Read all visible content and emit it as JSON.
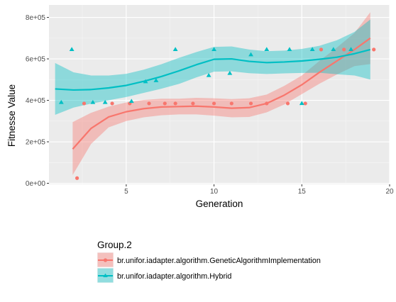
{
  "chart_data": {
    "type": "scatter",
    "title": "",
    "xlabel": "Generation",
    "ylabel": "Fitnesse Value",
    "xlim": [
      0.6,
      20.0
    ],
    "ylim": [
      -5000,
      860000
    ],
    "x_ticks": [
      5,
      10,
      15,
      20
    ],
    "x_tick_labels": [
      "5",
      "10",
      "15",
      "20"
    ],
    "y_ticks": [
      0,
      200000,
      400000,
      600000,
      800000
    ],
    "y_tick_labels": [
      "0e+00",
      "2e+05",
      "4e+05",
      "6e+05",
      "8e+05"
    ],
    "grid": true,
    "legend": {
      "title": "Group.2",
      "placement": "bottom"
    },
    "series": [
      {
        "name": "br.unifor.iadapter.algorithm.GeneticAlgorithmImplementation",
        "color": "#F8766D",
        "marker": "circle",
        "points": [
          [
            2.2,
            25000
          ],
          [
            2.6,
            385000
          ],
          [
            4.2,
            385000
          ],
          [
            5.2,
            385000
          ],
          [
            6.3,
            385000
          ],
          [
            7.2,
            385000
          ],
          [
            7.8,
            385000
          ],
          [
            8.8,
            385000
          ],
          [
            10.0,
            385000
          ],
          [
            11.0,
            385000
          ],
          [
            12.1,
            385000
          ],
          [
            13.0,
            385000
          ],
          [
            14.2,
            385000
          ],
          [
            15.2,
            385000
          ],
          [
            16.1,
            645000
          ],
          [
            17.4,
            645000
          ],
          [
            19.1,
            645000
          ]
        ],
        "smooth": {
          "x": [
            1.95,
            3,
            4,
            5,
            6,
            7,
            8,
            9,
            10,
            11,
            12,
            13,
            14,
            15,
            16,
            17,
            18,
            18.9
          ],
          "fit": [
            165000,
            265000,
            320000,
            345000,
            360000,
            368000,
            370000,
            372000,
            368000,
            362000,
            365000,
            385000,
            425000,
            475000,
            535000,
            590000,
            645000,
            700000
          ],
          "lower": [
            40000,
            190000,
            270000,
            300000,
            318000,
            328000,
            332000,
            332000,
            326000,
            318000,
            320000,
            342000,
            380000,
            430000,
            480000,
            525000,
            565000,
            575000
          ],
          "upper": [
            295000,
            340000,
            370000,
            390000,
            402000,
            408000,
            408000,
            412000,
            410000,
            406000,
            410000,
            428000,
            470000,
            520000,
            590000,
            655000,
            725000,
            825000
          ]
        }
      },
      {
        "name": "br.unifor.iadapter.algorithm.Hybrid",
        "color": "#00BFC4",
        "marker": "triangle",
        "points": [
          [
            1.3,
            390000
          ],
          [
            1.9,
            645000
          ],
          [
            3.1,
            390000
          ],
          [
            3.8,
            390000
          ],
          [
            5.3,
            395000
          ],
          [
            6.1,
            490000
          ],
          [
            6.7,
            495000
          ],
          [
            7.8,
            645000
          ],
          [
            9.7,
            520000
          ],
          [
            10.0,
            645000
          ],
          [
            10.9,
            530000
          ],
          [
            12.1,
            620000
          ],
          [
            13.0,
            645000
          ],
          [
            14.3,
            645000
          ],
          [
            15.0,
            385000
          ],
          [
            15.6,
            645000
          ],
          [
            16.8,
            645000
          ],
          [
            17.8,
            645000
          ]
        ],
        "smooth": {
          "x": [
            0.95,
            2,
            3,
            4,
            5,
            6,
            7,
            8,
            9,
            10,
            11,
            12,
            13,
            14,
            15,
            16,
            17,
            18,
            18.9
          ],
          "fit": [
            455000,
            450000,
            452000,
            460000,
            472000,
            492000,
            515000,
            542000,
            572000,
            598000,
            600000,
            588000,
            582000,
            585000,
            590000,
            598000,
            608000,
            625000,
            645000
          ],
          "upper": [
            580000,
            535000,
            520000,
            520000,
            528000,
            548000,
            574000,
            605000,
            633000,
            658000,
            660000,
            645000,
            637000,
            640000,
            648000,
            663000,
            690000,
            730000,
            790000
          ],
          "lower": [
            330000,
            365000,
            384000,
            400000,
            416000,
            436000,
            456000,
            479000,
            511000,
            538000,
            540000,
            531000,
            527000,
            530000,
            532000,
            533000,
            526000,
            520000,
            500000
          ]
        }
      }
    ]
  }
}
